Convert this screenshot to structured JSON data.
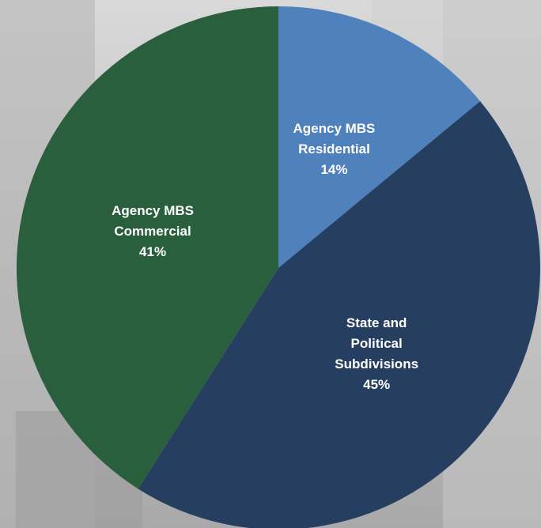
{
  "chart_data": {
    "type": "pie",
    "categories": [
      "Agency MBS Residential",
      "State and Political Subdivisions",
      "Agency MBS Commercial"
    ],
    "values": [
      14,
      45,
      41
    ],
    "value_labels": [
      "14%",
      "45%",
      "41%"
    ],
    "colors": [
      "#4f81bd",
      "#263f61",
      "#2a5f3d"
    ]
  }
}
